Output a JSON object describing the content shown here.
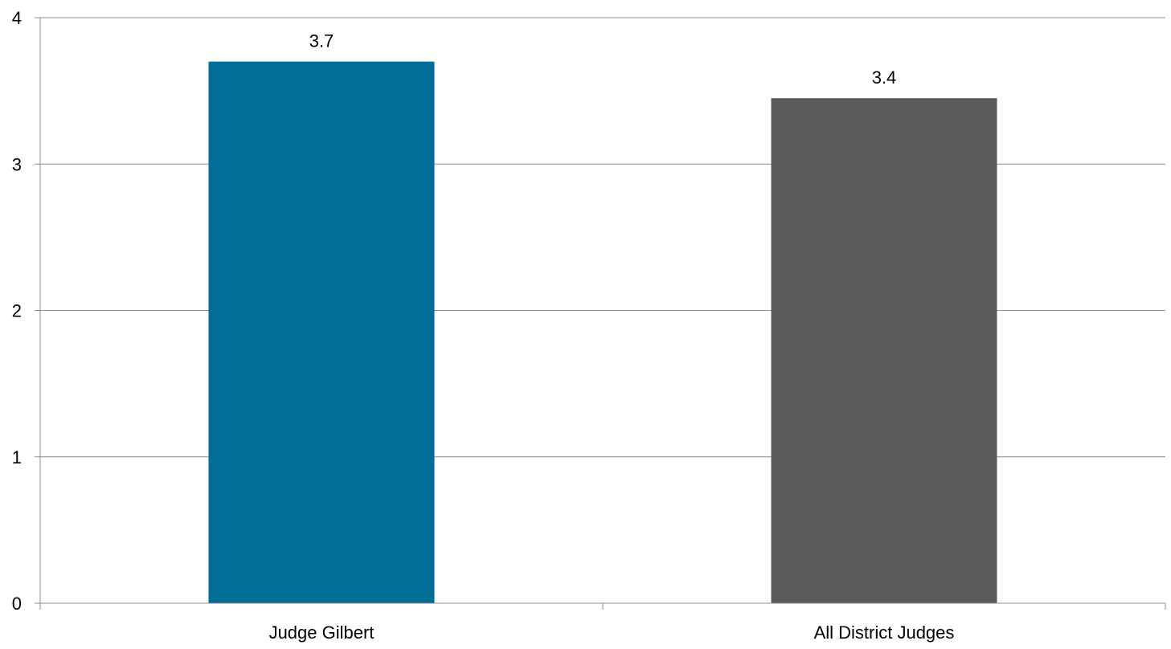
{
  "chart_data": {
    "type": "bar",
    "categories": [
      "Judge Gilbert",
      "All District Judges"
    ],
    "values": [
      3.7,
      3.45
    ],
    "data_labels": [
      "3.7",
      "3.4"
    ],
    "colors": [
      "#006e96",
      "#595959"
    ],
    "ylim": [
      0,
      4
    ],
    "yticks": [
      0,
      1,
      2,
      3,
      4
    ],
    "ytick_labels": [
      "0",
      "1",
      "2",
      "3",
      "4"
    ],
    "grid": true,
    "legend": "none"
  }
}
